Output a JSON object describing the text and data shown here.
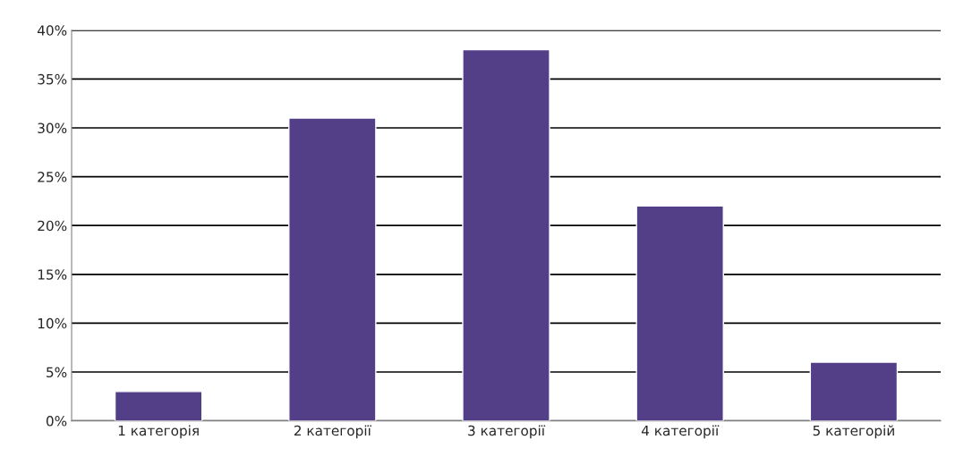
{
  "chart_data": {
    "type": "bar",
    "categories": [
      "1 категорія",
      "2 категорії",
      "3 категорії",
      "4 категорії",
      "5 категорій"
    ],
    "values": [
      3,
      31,
      38,
      22,
      6
    ],
    "color": "#523f87",
    "ylim": [
      0,
      40
    ],
    "yticks": [
      {
        "value": 0,
        "label": "0%"
      },
      {
        "value": 5,
        "label": "5%"
      },
      {
        "value": 10,
        "label": "10%"
      },
      {
        "value": 15,
        "label": "15%"
      },
      {
        "value": 20,
        "label": "20%"
      },
      {
        "value": 25,
        "label": "25%"
      },
      {
        "value": 30,
        "label": "30%"
      },
      {
        "value": 35,
        "label": "35%"
      },
      {
        "value": 40,
        "label": "40%"
      }
    ],
    "grid": "y"
  }
}
